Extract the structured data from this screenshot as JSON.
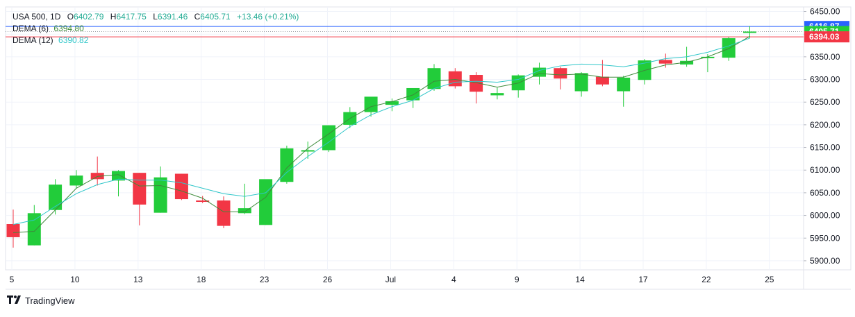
{
  "legend": {
    "symbol": "USA 500, 1D",
    "open_key": "O",
    "open": "6402.79",
    "high_key": "H",
    "high": "6417.75",
    "low_key": "L",
    "low": "6391.46",
    "close_key": "C",
    "close": "6405.71",
    "change": "+13.46 (+0.21%)",
    "dema6_label": "DEMA (6)",
    "dema6_value": "6394.80",
    "dema12_label": "DEMA (12)",
    "dema12_value": "6390.82"
  },
  "brand": {
    "name": "TradingView"
  },
  "colors": {
    "up": "#22cc3a",
    "down": "#f23645",
    "dema6": "#3d8a3a",
    "dema12": "#2ec6c9",
    "blue_line": "#2962ff",
    "red_line": "#f23645",
    "grid": "#f0f3fa"
  },
  "chart_data": {
    "type": "candlestick",
    "title": "USA 500, 1D",
    "x_tick_labels": [
      "5",
      "10",
      "13",
      "18",
      "23",
      "26",
      "Jul",
      "4",
      "9",
      "14",
      "17",
      "22",
      "25"
    ],
    "y_tick_labels": [
      "5900.00",
      "5950.00",
      "6000.00",
      "6050.00",
      "6100.00",
      "6150.00",
      "6200.00",
      "6250.00",
      "6300.00",
      "6350.00",
      "6400.00",
      "6450.00"
    ],
    "ylim": [
      5880,
      6460
    ],
    "price_labels": [
      {
        "value": 6416.87,
        "text": "6416.87",
        "color": "#2962ff"
      },
      {
        "value": 6405.71,
        "text": "6405.71",
        "color": "#22cc3a"
      },
      {
        "value": 6394.03,
        "text": "6394.03",
        "color": "#f23645"
      }
    ],
    "candles": [
      {
        "o": 5981,
        "h": 6013,
        "l": 5929,
        "c": 5952
      },
      {
        "o": 5934,
        "h": 6023,
        "l": 5934,
        "c": 6005
      },
      {
        "o": 6012,
        "h": 6080,
        "l": 6002,
        "c": 6068
      },
      {
        "o": 6066,
        "h": 6100,
        "l": 6060,
        "c": 6088
      },
      {
        "o": 6094,
        "h": 6130,
        "l": 6066,
        "c": 6080
      },
      {
        "o": 6077,
        "h": 6100,
        "l": 6042,
        "c": 6098
      },
      {
        "o": 6094,
        "h": 6094,
        "l": 5978,
        "c": 6024
      },
      {
        "o": 6006,
        "h": 6108,
        "l": 6006,
        "c": 6084
      },
      {
        "o": 6092,
        "h": 6092,
        "l": 6034,
        "c": 6036
      },
      {
        "o": 6033,
        "h": 6043,
        "l": 6027,
        "c": 6031
      },
      {
        "o": 6033,
        "h": 6042,
        "l": 5972,
        "c": 5977
      },
      {
        "o": 6005,
        "h": 6070,
        "l": 6003,
        "c": 6016
      },
      {
        "o": 5979,
        "h": 6078,
        "l": 5979,
        "c": 6080
      },
      {
        "o": 6074,
        "h": 6154,
        "l": 6070,
        "c": 6148
      },
      {
        "o": 6141,
        "h": 6163,
        "l": 6125,
        "c": 6144
      },
      {
        "o": 6144,
        "h": 6199,
        "l": 6140,
        "c": 6199
      },
      {
        "o": 6200,
        "h": 6239,
        "l": 6193,
        "c": 6228
      },
      {
        "o": 6228,
        "h": 6260,
        "l": 6218,
        "c": 6262
      },
      {
        "o": 6244,
        "h": 6258,
        "l": 6230,
        "c": 6252
      },
      {
        "o": 6254,
        "h": 6278,
        "l": 6237,
        "c": 6281
      },
      {
        "o": 6279,
        "h": 6334,
        "l": 6275,
        "c": 6325
      },
      {
        "o": 6318,
        "h": 6325,
        "l": 6280,
        "c": 6285
      },
      {
        "o": 6310,
        "h": 6316,
        "l": 6247,
        "c": 6273
      },
      {
        "o": 6265,
        "h": 6282,
        "l": 6256,
        "c": 6270
      },
      {
        "o": 6276,
        "h": 6311,
        "l": 6260,
        "c": 6309
      },
      {
        "o": 6306,
        "h": 6337,
        "l": 6289,
        "c": 6326
      },
      {
        "o": 6325,
        "h": 6328,
        "l": 6278,
        "c": 6302
      },
      {
        "o": 6274,
        "h": 6316,
        "l": 6262,
        "c": 6314
      },
      {
        "o": 6306,
        "h": 6343,
        "l": 6285,
        "c": 6289
      },
      {
        "o": 6274,
        "h": 6308,
        "l": 6240,
        "c": 6304
      },
      {
        "o": 6299,
        "h": 6345,
        "l": 6289,
        "c": 6342
      },
      {
        "o": 6343,
        "h": 6357,
        "l": 6326,
        "c": 6335
      },
      {
        "o": 6333,
        "h": 6372,
        "l": 6328,
        "c": 6341
      },
      {
        "o": 6348,
        "h": 6356,
        "l": 6316,
        "c": 6350
      },
      {
        "o": 6348,
        "h": 6394,
        "l": 6341,
        "c": 6391
      },
      {
        "o": 6402.79,
        "h": 6417.75,
        "l": 6391.46,
        "c": 6405.71
      }
    ],
    "series": [
      {
        "name": "DEMA (6)",
        "values": [
          5962,
          5965,
          6012,
          6060,
          6086,
          6090,
          6065,
          6066,
          6054,
          6038,
          6008,
          6008,
          6040,
          6105,
          6148,
          6180,
          6214,
          6240,
          6251,
          6266,
          6296,
          6300,
          6293,
          6283,
          6292,
          6313,
          6310,
          6312,
          6305,
          6305,
          6320,
          6332,
          6338,
          6350,
          6368,
          6395
        ]
      },
      {
        "name": "DEMA (12)",
        "values": [
          5980,
          5990,
          6020,
          6048,
          6068,
          6080,
          6078,
          6078,
          6072,
          6060,
          6048,
          6042,
          6050,
          6095,
          6130,
          6162,
          6196,
          6222,
          6240,
          6254,
          6280,
          6294,
          6296,
          6294,
          6300,
          6320,
          6330,
          6334,
          6332,
          6328,
          6336,
          6346,
          6350,
          6360,
          6374,
          6391
        ]
      }
    ]
  }
}
